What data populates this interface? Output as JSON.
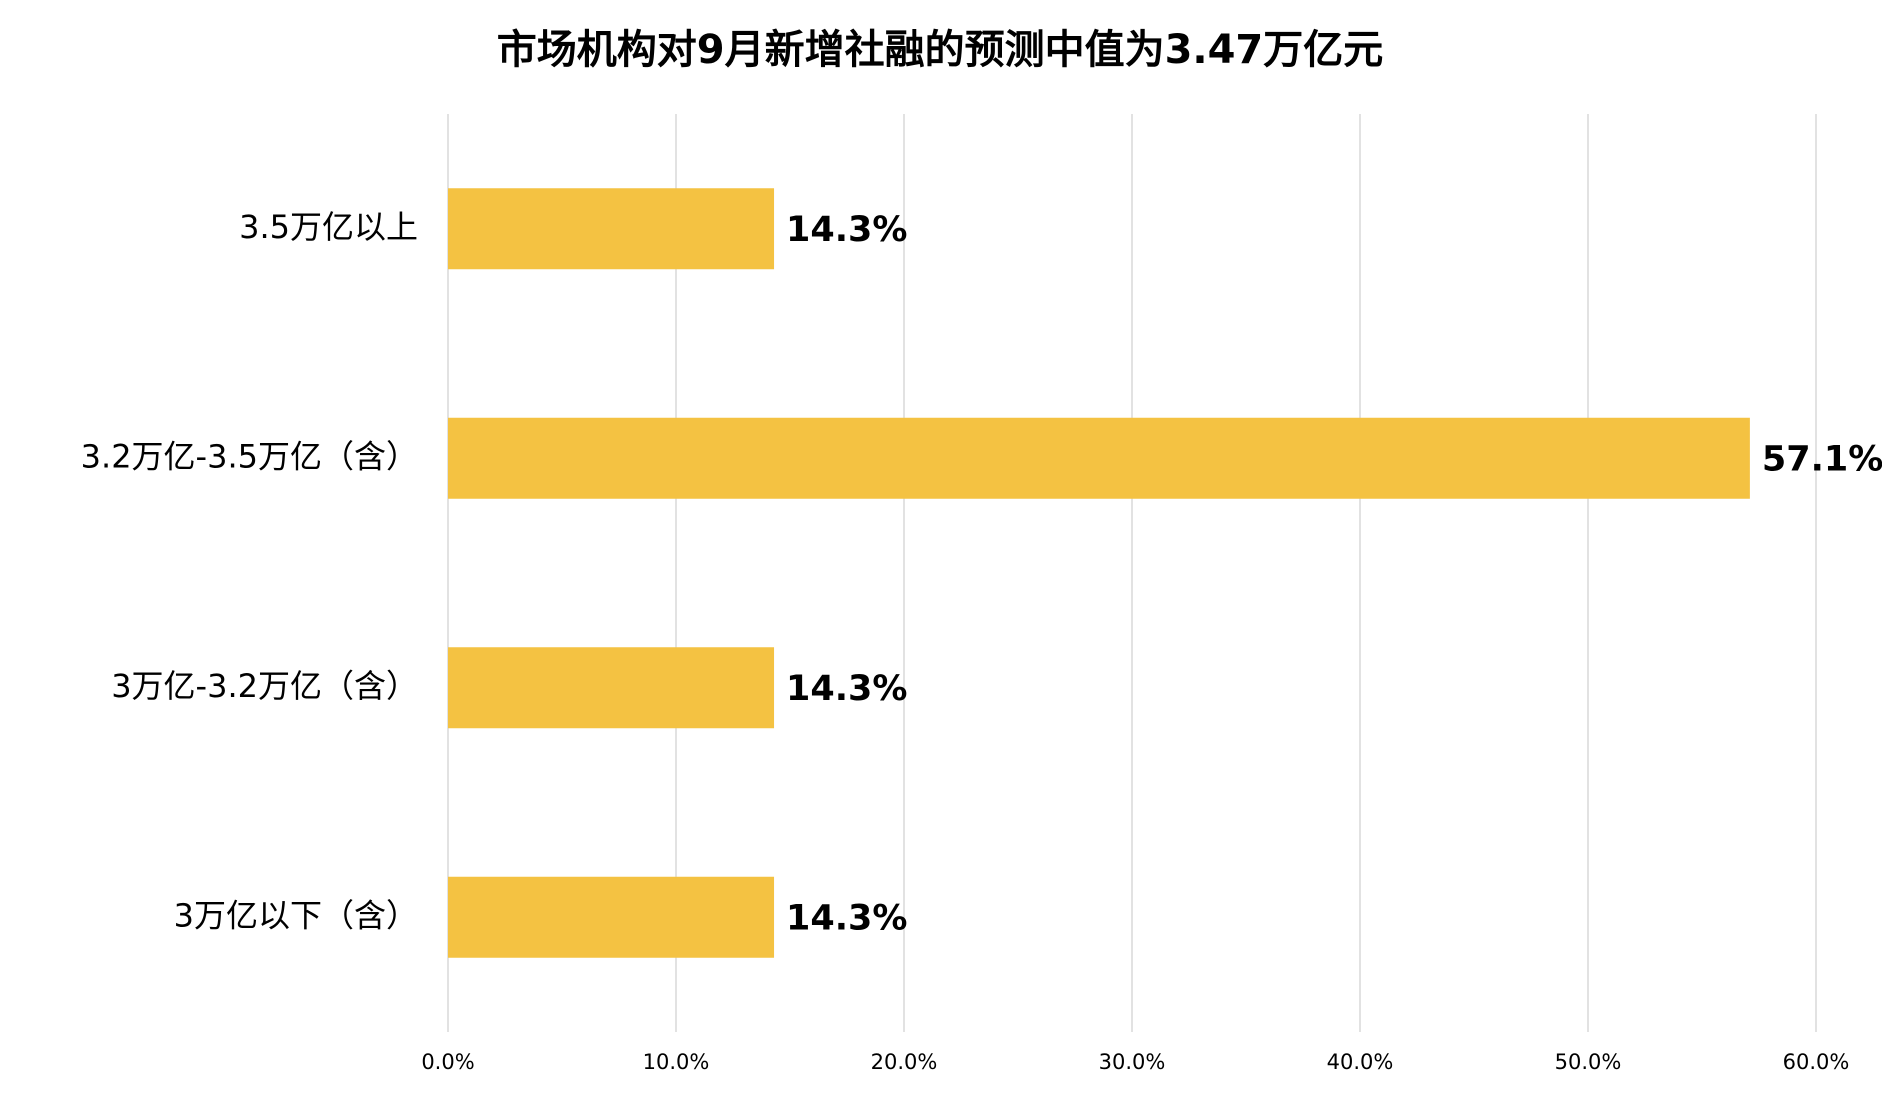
{
  "chart_data": {
    "type": "hbar",
    "title": "市场机构对9月新增社融的预测中值为3.47万亿元",
    "categories": [
      "3.5万亿以上",
      "3.2万亿-3.5万亿（含）",
      "3万亿-3.2万亿（含）",
      "3万亿以下（含）"
    ],
    "values": [
      14.3,
      57.1,
      14.3,
      14.3
    ],
    "value_labels": [
      "14.3%",
      "57.1%",
      "14.3%",
      "14.3%"
    ],
    "color": "#f4c242",
    "xlim": [
      0,
      60
    ],
    "xticks": [
      {
        "value": 0,
        "label": "0.0%"
      },
      {
        "value": 10,
        "label": "10.0%"
      },
      {
        "value": 20,
        "label": "20.0%"
      },
      {
        "value": 30,
        "label": "30.0%"
      },
      {
        "value": 40,
        "label": "40.0%"
      },
      {
        "value": 50,
        "label": "50.0%"
      },
      {
        "value": 60,
        "label": "60.0%"
      }
    ],
    "grid": true
  }
}
